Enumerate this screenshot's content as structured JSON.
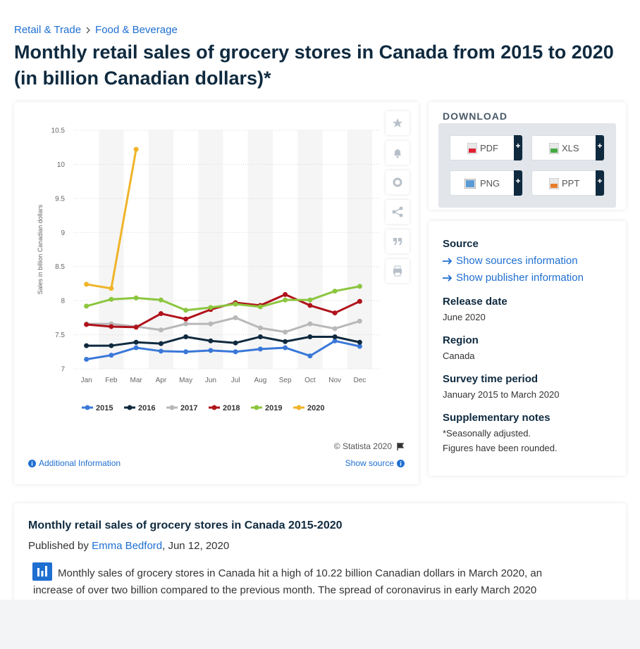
{
  "breadcrumb": [
    "Retail & Trade",
    "Food & Beverage"
  ],
  "title": "Monthly retail sales of grocery stores in Canada from 2015 to 2020 (in billion Canadian dollars)*",
  "chart_data": {
    "type": "line",
    "y_label": "Sales in billion Canadian dollars",
    "categories": [
      "Jan",
      "Feb",
      "Mar",
      "Apr",
      "May",
      "Jun",
      "Jul",
      "Aug",
      "Sep",
      "Oct",
      "Nov",
      "Dec"
    ],
    "ylim": [
      7,
      10.5
    ],
    "yticks": [
      7,
      7.5,
      8,
      8.5,
      9,
      9.5,
      10,
      10.5
    ],
    "grid": true,
    "legend": "bottom",
    "series": [
      {
        "name": "2015",
        "color": "#3a78d8",
        "values": [
          7.14,
          7.2,
          7.31,
          7.26,
          7.25,
          7.27,
          7.25,
          7.29,
          7.31,
          7.19,
          7.41,
          7.33
        ]
      },
      {
        "name": "2016",
        "color": "#0f2a3f",
        "values": [
          7.34,
          7.34,
          7.39,
          7.37,
          7.47,
          7.41,
          7.38,
          7.47,
          7.4,
          7.47,
          7.47,
          7.39
        ]
      },
      {
        "name": "2017",
        "color": "#b8b8b8",
        "values": [
          7.66,
          7.66,
          7.62,
          7.57,
          7.66,
          7.66,
          7.75,
          7.6,
          7.54,
          7.66,
          7.59,
          7.7
        ]
      },
      {
        "name": "2018",
        "color": "#b0121b",
        "values": [
          7.65,
          7.62,
          7.61,
          7.81,
          7.73,
          7.87,
          7.97,
          7.93,
          8.09,
          7.93,
          7.82,
          7.99
        ]
      },
      {
        "name": "2019",
        "color": "#8cc63f",
        "values": [
          7.92,
          8.02,
          8.04,
          8.01,
          7.86,
          7.9,
          7.95,
          7.91,
          8.01,
          8.01,
          8.14,
          8.21
        ]
      },
      {
        "name": "2020",
        "color": "#f0b429",
        "values": [
          8.24,
          8.18,
          10.22,
          null,
          null,
          null,
          null,
          null,
          null,
          null,
          null,
          null
        ]
      }
    ]
  },
  "chart_footer": {
    "copyright": "© Statista 2020",
    "additional_info": "Additional Information",
    "show_source": "Show source"
  },
  "download": {
    "title": "DOWNLOAD",
    "buttons": [
      "PDF",
      "XLS",
      "PNG",
      "PPT"
    ]
  },
  "details": {
    "source": {
      "label": "Source",
      "links": [
        "Show sources information",
        "Show publisher information"
      ]
    },
    "release_date": {
      "label": "Release date",
      "value": "June 2020"
    },
    "region": {
      "label": "Region",
      "value": "Canada"
    },
    "survey_period": {
      "label": "Survey time period",
      "value": "January 2015 to March 2020"
    },
    "notes": {
      "label": "Supplementary notes",
      "lines": [
        "*Seasonally adjusted.",
        "Figures have been rounded."
      ]
    }
  },
  "article": {
    "title": "Monthly retail sales of grocery stores in Canada 2015-2020",
    "published_by": "Published by",
    "author": "Emma Bedford",
    "date": ", Jun 12, 2020",
    "text": "Monthly sales of grocery stores in Canada hit a high of 10.22 billion Canadian dollars in March 2020, an increase of over two billion compared to the previous month. The spread of coronavirus in early March 2020"
  }
}
